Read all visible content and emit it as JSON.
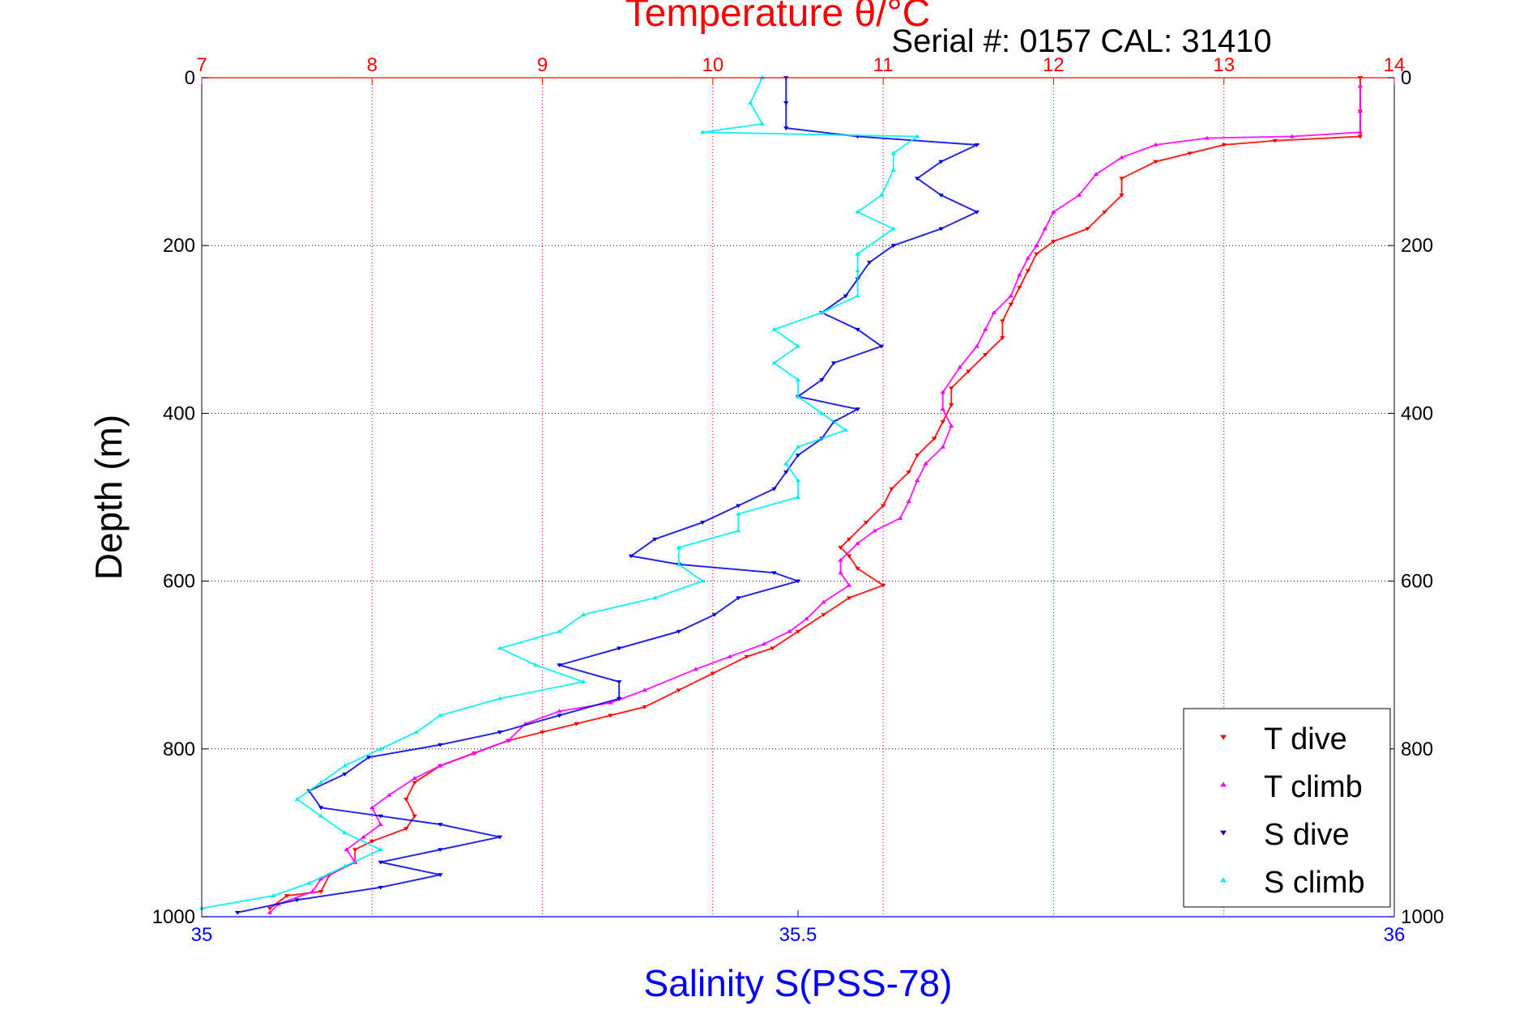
{
  "chart_data": {
    "type": "scatter",
    "title": "Temperature θ/°C",
    "subtitle": "Serial #: 0157  CAL: 31410",
    "ylabel": "Depth (m)",
    "xlabel_bottom": "Salinity S(PSS-78)",
    "y_axis": {
      "range": [
        0,
        1000
      ],
      "reversed": true,
      "ticks": [
        0,
        200,
        400,
        600,
        800,
        1000
      ]
    },
    "x_axis_top": {
      "quantity": "temperature",
      "range": [
        7,
        14
      ],
      "ticks": [
        7,
        8,
        9,
        10,
        11,
        12,
        13,
        14
      ],
      "color": "#ff0000"
    },
    "x_axis_bottom": {
      "quantity": "salinity",
      "range": [
        35,
        36
      ],
      "ticks": [
        35,
        35.5,
        36
      ],
      "color": "#0000ff"
    },
    "grid": true,
    "legend_position": "bottom-right",
    "series": [
      {
        "name": "T dive",
        "axis": "top",
        "color": "#ff0000",
        "marker": "triangle-down",
        "points": [
          [
            13.8,
            0
          ],
          [
            13.8,
            40
          ],
          [
            13.8,
            70
          ],
          [
            13.3,
            75
          ],
          [
            13.0,
            80
          ],
          [
            12.8,
            90
          ],
          [
            12.6,
            100
          ],
          [
            12.4,
            120
          ],
          [
            12.4,
            140
          ],
          [
            12.3,
            160
          ],
          [
            12.2,
            180
          ],
          [
            12.0,
            195
          ],
          [
            11.9,
            210
          ],
          [
            11.85,
            230
          ],
          [
            11.8,
            250
          ],
          [
            11.75,
            270
          ],
          [
            11.7,
            290
          ],
          [
            11.7,
            310
          ],
          [
            11.6,
            330
          ],
          [
            11.5,
            350
          ],
          [
            11.4,
            370
          ],
          [
            11.4,
            390
          ],
          [
            11.35,
            410
          ],
          [
            11.3,
            430
          ],
          [
            11.2,
            450
          ],
          [
            11.15,
            470
          ],
          [
            11.05,
            490
          ],
          [
            11.0,
            510
          ],
          [
            10.9,
            530
          ],
          [
            10.8,
            550
          ],
          [
            10.75,
            560
          ],
          [
            10.8,
            570
          ],
          [
            10.85,
            585
          ],
          [
            11.0,
            605
          ],
          [
            10.8,
            620
          ],
          [
            10.65,
            640
          ],
          [
            10.5,
            660
          ],
          [
            10.35,
            680
          ],
          [
            10.2,
            690
          ],
          [
            10.0,
            710
          ],
          [
            9.8,
            730
          ],
          [
            9.6,
            750
          ],
          [
            9.4,
            760
          ],
          [
            9.2,
            770
          ],
          [
            9.0,
            780
          ],
          [
            8.8,
            790
          ],
          [
            8.6,
            805
          ],
          [
            8.4,
            820
          ],
          [
            8.25,
            840
          ],
          [
            8.2,
            860
          ],
          [
            8.25,
            880
          ],
          [
            8.2,
            895
          ],
          [
            8.0,
            910
          ],
          [
            7.9,
            920
          ],
          [
            7.9,
            935
          ],
          [
            7.75,
            950
          ],
          [
            7.7,
            970
          ],
          [
            7.5,
            975
          ],
          [
            7.4,
            990
          ]
        ]
      },
      {
        "name": "T climb",
        "axis": "top",
        "color": "#ff00ff",
        "marker": "triangle-up",
        "points": [
          [
            13.8,
            10
          ],
          [
            13.8,
            40
          ],
          [
            13.8,
            65
          ],
          [
            13.4,
            70
          ],
          [
            12.9,
            72
          ],
          [
            12.6,
            80
          ],
          [
            12.4,
            95
          ],
          [
            12.25,
            115
          ],
          [
            12.15,
            140
          ],
          [
            12.0,
            160
          ],
          [
            11.95,
            180
          ],
          [
            11.9,
            200
          ],
          [
            11.85,
            215
          ],
          [
            11.8,
            235
          ],
          [
            11.75,
            260
          ],
          [
            11.65,
            280
          ],
          [
            11.6,
            300
          ],
          [
            11.55,
            320
          ],
          [
            11.45,
            345
          ],
          [
            11.35,
            375
          ],
          [
            11.35,
            395
          ],
          [
            11.4,
            415
          ],
          [
            11.35,
            440
          ],
          [
            11.25,
            460
          ],
          [
            11.2,
            480
          ],
          [
            11.15,
            505
          ],
          [
            11.1,
            525
          ],
          [
            10.95,
            540
          ],
          [
            10.85,
            555
          ],
          [
            10.75,
            575
          ],
          [
            10.75,
            590
          ],
          [
            10.8,
            605
          ],
          [
            10.65,
            625
          ],
          [
            10.55,
            645
          ],
          [
            10.45,
            660
          ],
          [
            10.3,
            675
          ],
          [
            10.1,
            690
          ],
          [
            9.9,
            705
          ],
          [
            9.6,
            730
          ],
          [
            9.4,
            745
          ],
          [
            9.1,
            755
          ],
          [
            8.9,
            770
          ],
          [
            8.8,
            790
          ],
          [
            8.6,
            805
          ],
          [
            8.4,
            820
          ],
          [
            8.25,
            835
          ],
          [
            8.1,
            855
          ],
          [
            8.0,
            870
          ],
          [
            8.05,
            890
          ],
          [
            7.95,
            905
          ],
          [
            7.85,
            920
          ],
          [
            7.9,
            935
          ],
          [
            7.7,
            955
          ],
          [
            7.65,
            970
          ],
          [
            7.45,
            985
          ],
          [
            7.4,
            995
          ]
        ]
      },
      {
        "name": "S dive",
        "axis": "bottom",
        "color": "#0000dd",
        "marker": "triangle-down",
        "points": [
          [
            35.49,
            0
          ],
          [
            35.49,
            30
          ],
          [
            35.49,
            60
          ],
          [
            35.55,
            70
          ],
          [
            35.65,
            80
          ],
          [
            35.62,
            100
          ],
          [
            35.6,
            120
          ],
          [
            35.62,
            140
          ],
          [
            35.65,
            160
          ],
          [
            35.62,
            180
          ],
          [
            35.58,
            200
          ],
          [
            35.56,
            220
          ],
          [
            35.55,
            240
          ],
          [
            35.54,
            260
          ],
          [
            35.52,
            280
          ],
          [
            35.55,
            300
          ],
          [
            35.57,
            320
          ],
          [
            35.53,
            340
          ],
          [
            35.52,
            360
          ],
          [
            35.5,
            380
          ],
          [
            35.55,
            395
          ],
          [
            35.53,
            410
          ],
          [
            35.52,
            430
          ],
          [
            35.5,
            450
          ],
          [
            35.49,
            470
          ],
          [
            35.48,
            490
          ],
          [
            35.45,
            510
          ],
          [
            35.42,
            530
          ],
          [
            35.38,
            550
          ],
          [
            35.36,
            570
          ],
          [
            35.4,
            580
          ],
          [
            35.48,
            590
          ],
          [
            35.5,
            600
          ],
          [
            35.45,
            620
          ],
          [
            35.43,
            640
          ],
          [
            35.4,
            660
          ],
          [
            35.35,
            680
          ],
          [
            35.3,
            700
          ],
          [
            35.35,
            720
          ],
          [
            35.35,
            740
          ],
          [
            35.3,
            760
          ],
          [
            35.25,
            780
          ],
          [
            35.2,
            795
          ],
          [
            35.14,
            810
          ],
          [
            35.12,
            830
          ],
          [
            35.09,
            850
          ],
          [
            35.1,
            870
          ],
          [
            35.15,
            880
          ],
          [
            35.2,
            890
          ],
          [
            35.25,
            905
          ],
          [
            35.2,
            920
          ],
          [
            35.15,
            935
          ],
          [
            35.2,
            950
          ],
          [
            35.15,
            965
          ],
          [
            35.08,
            980
          ],
          [
            35.03,
            995
          ]
        ]
      },
      {
        "name": "S climb",
        "axis": "bottom",
        "color": "#00eeee",
        "marker": "triangle-up",
        "points": [
          [
            35.47,
            0
          ],
          [
            35.46,
            30
          ],
          [
            35.47,
            55
          ],
          [
            35.42,
            65
          ],
          [
            35.6,
            70
          ],
          [
            35.58,
            90
          ],
          [
            35.58,
            110
          ],
          [
            35.57,
            140
          ],
          [
            35.55,
            160
          ],
          [
            35.58,
            180
          ],
          [
            35.55,
            210
          ],
          [
            35.55,
            230
          ],
          [
            35.55,
            260
          ],
          [
            35.52,
            280
          ],
          [
            35.48,
            300
          ],
          [
            35.5,
            320
          ],
          [
            35.48,
            340
          ],
          [
            35.5,
            360
          ],
          [
            35.5,
            380
          ],
          [
            35.52,
            400
          ],
          [
            35.54,
            420
          ],
          [
            35.5,
            440
          ],
          [
            35.49,
            460
          ],
          [
            35.5,
            480
          ],
          [
            35.5,
            500
          ],
          [
            35.45,
            520
          ],
          [
            35.45,
            540
          ],
          [
            35.4,
            560
          ],
          [
            35.4,
            580
          ],
          [
            35.42,
            600
          ],
          [
            35.38,
            620
          ],
          [
            35.32,
            640
          ],
          [
            35.3,
            660
          ],
          [
            35.25,
            680
          ],
          [
            35.28,
            700
          ],
          [
            35.32,
            720
          ],
          [
            35.25,
            740
          ],
          [
            35.2,
            760
          ],
          [
            35.18,
            780
          ],
          [
            35.15,
            800
          ],
          [
            35.12,
            820
          ],
          [
            35.1,
            840
          ],
          [
            35.08,
            860
          ],
          [
            35.1,
            880
          ],
          [
            35.12,
            900
          ],
          [
            35.15,
            920
          ],
          [
            35.12,
            940
          ],
          [
            35.09,
            960
          ],
          [
            35.06,
            975
          ],
          [
            35.0,
            990
          ]
        ]
      }
    ]
  }
}
